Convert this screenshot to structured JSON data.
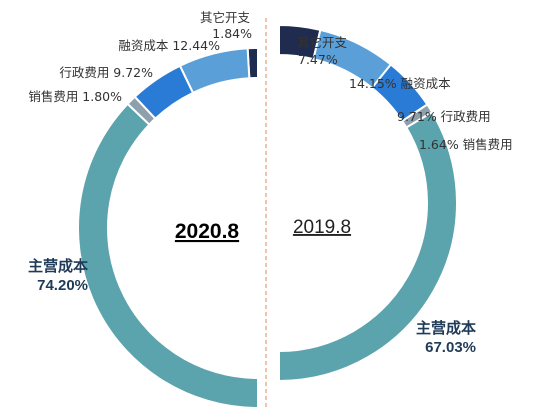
{
  "chart_data": {
    "type": "pie",
    "colors": {
      "主营成本": "#5ba3ad",
      "销售费用": "#8fa0ad",
      "行政费用": "#2a7bd6",
      "融资成本": "#5b9fd8",
      "其它开支": "#1f2b4f"
    },
    "series": [
      {
        "name": "2020.8",
        "slices": [
          {
            "category": "主营成本",
            "value": 74.2,
            "pct": "74.20%"
          },
          {
            "category": "销售费用",
            "value": 1.8,
            "pct": "1.80%"
          },
          {
            "category": "行政费用",
            "value": 9.72,
            "pct": "9.72%"
          },
          {
            "category": "融资成本",
            "value": 12.44,
            "pct": "12.44%"
          },
          {
            "category": "其它开支",
            "value": 1.84,
            "pct": "1.84%"
          }
        ]
      },
      {
        "name": "2019.8",
        "slices": [
          {
            "category": "主营成本",
            "value": 67.03,
            "pct": "67.03%"
          },
          {
            "category": "销售费用",
            "value": 1.64,
            "pct": "1.64%"
          },
          {
            "category": "行政费用",
            "value": 9.71,
            "pct": "9.71%"
          },
          {
            "category": "融资成本",
            "value": 14.15,
            "pct": "14.15%"
          },
          {
            "category": "其它开支",
            "value": 7.47,
            "pct": "7.47%"
          }
        ]
      }
    ]
  },
  "labels": {
    "left_main_name": "主营成本",
    "left_main_pct": "74.20%",
    "left_other_name": "其它开支",
    "left_other_pct": "1.84%",
    "left_finance": "融资成本 12.44%",
    "left_admin": "行政费用 9.72%",
    "left_sales": "销售费用 1.80%",
    "right_other_name": "其它开支",
    "right_other_pct": "7.47%",
    "right_finance": "14.15% 融资成本",
    "right_admin": "9.71% 行政费用",
    "right_sales": "1.64% 销售费用",
    "right_main_name": "主营成本",
    "right_main_pct": "67.03%"
  }
}
